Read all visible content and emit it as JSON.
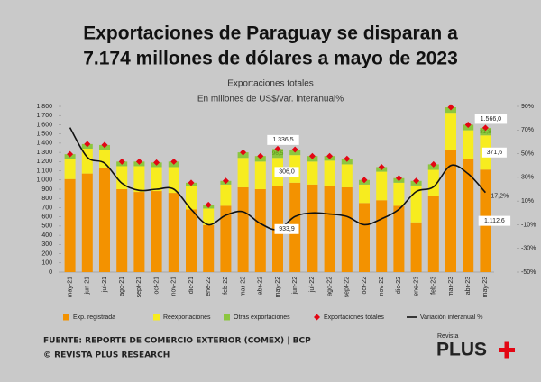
{
  "chart_data": {
    "type": "bar",
    "title_lines": [
      "Exportaciones de Paraguay se disparan a",
      "7.174 millones de dólares a mayo de 2023"
    ],
    "subtitle": "Exportaciones totales",
    "axis_note": "En millones de US$/var. interanual%",
    "categories": [
      "may-21",
      "jun-21",
      "jul-21",
      "ago-21",
      "sept-21",
      "oct-21",
      "nov-21",
      "dic-21",
      "ene-22",
      "feb-22",
      "mar-22",
      "abr-22",
      "may-22",
      "jun-22",
      "jul-22",
      "ago-22",
      "sept-22",
      "oct-22",
      "nov-22",
      "dic-22",
      "ene-23",
      "feb-23",
      "mar-23",
      "abr-23",
      "may-23"
    ],
    "series": [
      {
        "name": "Exp. registrada",
        "type": "bar",
        "color": "#f39200",
        "values": [
          1010,
          1070,
          1130,
          900,
          870,
          880,
          860,
          680,
          510,
          720,
          920,
          900,
          933.9,
          970,
          950,
          930,
          920,
          750,
          780,
          720,
          540,
          830,
          1330,
          1230,
          1112.6
        ],
        "value_labels": [
          null,
          null,
          null,
          null,
          null,
          null,
          null,
          null,
          null,
          null,
          null,
          null,
          "933,9",
          null,
          null,
          null,
          null,
          null,
          null,
          null,
          null,
          null,
          null,
          null,
          "1.112,6"
        ]
      },
      {
        "name": "Reexportaciones",
        "type": "bar",
        "color": "#f7ec1f",
        "values": [
          220,
          270,
          200,
          250,
          280,
          260,
          280,
          250,
          180,
          230,
          320,
          300,
          306.0,
          300,
          250,
          280,
          250,
          200,
          310,
          250,
          400,
          280,
          400,
          310,
          371.6
        ],
        "value_labels": [
          null,
          null,
          null,
          null,
          null,
          null,
          null,
          null,
          null,
          null,
          null,
          null,
          "306,0",
          null,
          null,
          null,
          null,
          null,
          null,
          null,
          null,
          null,
          null,
          null,
          "371,6"
        ]
      },
      {
        "name": "Otras exportaciones",
        "type": "bar",
        "color": "#8cc63f",
        "values": [
          50,
          50,
          50,
          50,
          50,
          50,
          60,
          40,
          40,
          40,
          60,
          60,
          96.5,
          60,
          60,
          50,
          60,
          50,
          50,
          50,
          50,
          60,
          60,
          60,
          81.8
        ],
        "value_labels": [
          null,
          null,
          null,
          null,
          null,
          null,
          null,
          null,
          null,
          null,
          null,
          null,
          "96,5",
          null,
          null,
          null,
          null,
          null,
          null,
          null,
          null,
          null,
          null,
          null,
          "81,8"
        ]
      },
      {
        "name": "Exportaciones  totales",
        "type": "scatter",
        "color": "#e30613",
        "values": [
          1280,
          1390,
          1380,
          1200,
          1200,
          1190,
          1200,
          970,
          730,
          990,
          1300,
          1260,
          1336.5,
          1330,
          1260,
          1260,
          1230,
          1000,
          1140,
          1020,
          990,
          1170,
          1790,
          1600,
          1566.0
        ],
        "value_labels": [
          null,
          null,
          null,
          null,
          null,
          null,
          null,
          null,
          null,
          null,
          null,
          null,
          "1.336,5",
          null,
          null,
          null,
          null,
          null,
          null,
          null,
          null,
          null,
          null,
          null,
          "1.566,0"
        ]
      },
      {
        "name": "Variación interanual %",
        "type": "line",
        "axis": "y2",
        "color": "#111111",
        "values": [
          72,
          47,
          42,
          25,
          19,
          20,
          20,
          3,
          -10,
          -2,
          1,
          -9,
          -14,
          -3,
          0,
          -1,
          -3,
          -10,
          -5,
          3,
          18,
          22,
          40,
          33,
          17.2
        ],
        "value_labels": [
          null,
          null,
          null,
          null,
          null,
          null,
          null,
          null,
          null,
          null,
          null,
          null,
          null,
          null,
          null,
          null,
          null,
          null,
          null,
          null,
          null,
          null,
          null,
          null,
          "17,2%"
        ]
      }
    ],
    "ylim": [
      0,
      1800
    ],
    "yticks": [
      0,
      100,
      200,
      300,
      400,
      500,
      600,
      700,
      800,
      900,
      {
        "value": 1000,
        "label": "1.000"
      },
      {
        "value": 1100,
        "label": "1.100"
      },
      {
        "value": 1200,
        "label": "1.200"
      },
      {
        "value": 1300,
        "label": "1.300"
      },
      {
        "value": 1400,
        "label": "1.400"
      },
      {
        "value": 1500,
        "label": "1.500"
      },
      {
        "value": 1600,
        "label": "1.600"
      },
      {
        "value": 1700,
        "label": "1.700"
      },
      {
        "value": 1800,
        "label": "1.800"
      }
    ],
    "y2lim": [
      -50,
      90
    ],
    "y2ticks": [
      {
        "value": -50,
        "label": "-50%"
      },
      {
        "value": -30,
        "label": "-30%"
      },
      {
        "value": -10,
        "label": "-10%"
      },
      {
        "value": 10,
        "label": "10%"
      },
      {
        "value": 30,
        "label": "30%"
      },
      {
        "value": 50,
        "label": "50%"
      },
      {
        "value": 70,
        "label": "70%"
      },
      {
        "value": 90,
        "label": "90%"
      }
    ],
    "grid": false,
    "legend": "bottom",
    "source": "FUENTE: REPORTE DE COMERCIO EXTERIOR (COMEX)  |  BCP",
    "credit": "© REVISTA PLUS RESEARCH",
    "logo_small": "Revista",
    "logo": "PLUS"
  }
}
